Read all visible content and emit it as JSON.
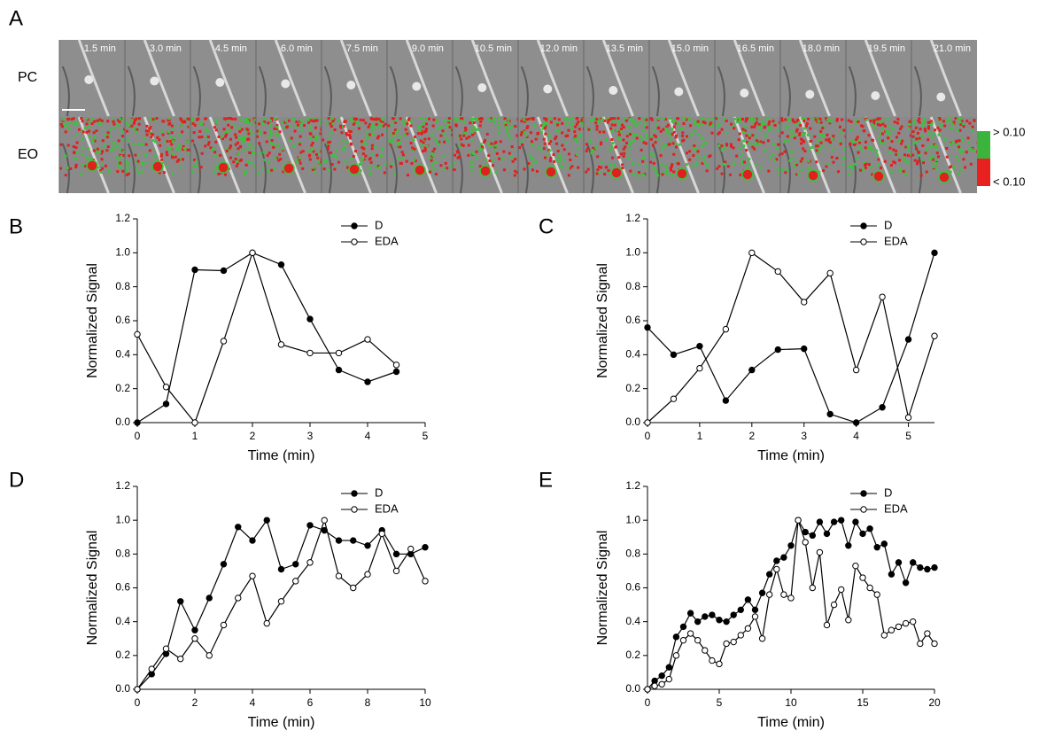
{
  "panel_a": {
    "letter": "A",
    "row_labels": [
      "PC",
      "EO"
    ],
    "times": [
      "1.5 min",
      "3.0 min",
      "4.5 min",
      "6.0 min",
      "7.5 min",
      "9.0 min",
      "10.5 min",
      "12.0 min",
      "13.5 min",
      "15.0 min",
      "16.5 min",
      "18.0 min",
      "19.5 min",
      "21.0 min"
    ],
    "colorbar_labels": [
      "> 0.10",
      "< 0.10"
    ]
  },
  "chart_data": [
    {
      "type": "line",
      "panel": "B",
      "x_label": "Time (min)",
      "y_label": "Normalized Signal",
      "x": [
        0,
        0.5,
        1,
        1.5,
        2,
        2.5,
        3,
        3.5,
        4,
        4.5
      ],
      "series": [
        {
          "name": "D",
          "color": "#000000",
          "marker": "filled",
          "values": [
            0,
            0.11,
            0.9,
            0.895,
            1.0,
            0.93,
            0.61,
            0.31,
            0.24,
            0.3
          ]
        },
        {
          "name": "EDA",
          "color": "#000000",
          "marker": "open",
          "values": [
            0.52,
            0.21,
            0,
            0.48,
            1.0,
            0.46,
            0.41,
            0.41,
            0.49,
            0.34
          ]
        }
      ],
      "xlim": [
        0,
        5
      ],
      "xticks": [
        0,
        1,
        2,
        3,
        4,
        5
      ],
      "ylim": [
        0,
        1.2
      ],
      "yticks": [
        {
          "value": 0,
          "label": "0.0"
        },
        0.2,
        0.4,
        0.6,
        0.8,
        {
          "value": 1,
          "label": "1.0"
        },
        1.2
      ],
      "legend": "top-right"
    },
    {
      "type": "line",
      "panel": "C",
      "x_label": "Time (min)",
      "y_label": "Normalized Signal",
      "x": [
        0,
        0.5,
        1,
        1.5,
        2,
        2.5,
        3,
        3.5,
        4,
        4.5,
        5,
        5.5
      ],
      "series": [
        {
          "name": "D",
          "color": "#000000",
          "marker": "filled",
          "values": [
            0.56,
            0.4,
            0.45,
            0.13,
            0.31,
            0.43,
            0.435,
            0.05,
            0,
            0.09,
            0.49,
            1.0
          ]
        },
        {
          "name": "EDA",
          "color": "#000000",
          "marker": "open",
          "values": [
            0,
            0.14,
            0.32,
            0.55,
            1.0,
            0.89,
            0.71,
            0.88,
            0.31,
            0.74,
            0.03,
            0.51
          ]
        }
      ],
      "xlim": [
        0,
        5.5
      ],
      "xticks": [
        0,
        1,
        2,
        3,
        4,
        5
      ],
      "ylim": [
        0,
        1.2
      ],
      "yticks": [
        {
          "value": 0,
          "label": "0.0"
        },
        0.2,
        0.4,
        0.6,
        0.8,
        {
          "value": 1,
          "label": "1.0"
        },
        1.2
      ],
      "legend": "top-right"
    },
    {
      "type": "line",
      "panel": "D",
      "x_label": "Time (min)",
      "y_label": "Normalized Signal",
      "x": [
        0,
        0.5,
        1,
        1.5,
        2,
        2.5,
        3,
        3.5,
        4,
        4.5,
        5,
        5.5,
        6,
        6.5,
        7,
        7.5,
        8,
        8.5,
        9,
        9.5,
        10
      ],
      "series": [
        {
          "name": "D",
          "color": "#000000",
          "marker": "filled",
          "values": [
            0,
            0.09,
            0.21,
            0.52,
            0.35,
            0.54,
            0.74,
            0.96,
            0.88,
            1.0,
            0.71,
            0.74,
            0.97,
            0.94,
            0.88,
            0.88,
            0.85,
            0.94,
            0.8,
            0.8,
            0.84
          ]
        },
        {
          "name": "EDA",
          "color": "#000000",
          "marker": "open",
          "values": [
            0,
            0.12,
            0.24,
            0.18,
            0.3,
            0.2,
            0.38,
            0.54,
            0.67,
            0.39,
            0.52,
            0.64,
            0.75,
            1.0,
            0.67,
            0.6,
            0.68,
            0.92,
            0.7,
            0.83,
            0.64
          ]
        }
      ],
      "xlim": [
        0,
        10
      ],
      "xticks": [
        0,
        2,
        4,
        6,
        8,
        10
      ],
      "ylim": [
        0,
        1.2
      ],
      "yticks": [
        {
          "value": 0,
          "label": "0.0"
        },
        0.2,
        0.4,
        0.6,
        0.8,
        {
          "value": 1,
          "label": "1.0"
        },
        1.2
      ],
      "legend": "top-right"
    },
    {
      "type": "line",
      "panel": "E",
      "x_label": "Time (min)",
      "y_label": "Normalized Signal",
      "x": [
        0,
        0.5,
        1,
        1.5,
        2,
        2.5,
        3,
        3.5,
        4,
        4.5,
        5,
        5.5,
        6,
        6.5,
        7,
        7.5,
        8,
        8.5,
        9,
        9.5,
        10,
        10.5,
        11,
        11.5,
        12,
        12.5,
        13,
        13.5,
        14,
        14.5,
        15,
        15.5,
        16,
        16.5,
        17,
        17.5,
        18,
        18.5,
        19,
        19.5,
        20
      ],
      "series": [
        {
          "name": "D",
          "color": "#000000",
          "marker": "filled",
          "values": [
            0,
            0.05,
            0.08,
            0.13,
            0.31,
            0.37,
            0.45,
            0.4,
            0.43,
            0.44,
            0.41,
            0.4,
            0.44,
            0.47,
            0.53,
            0.47,
            0.57,
            0.68,
            0.76,
            0.78,
            0.85,
            1.0,
            0.93,
            0.91,
            0.99,
            0.92,
            0.99,
            1.0,
            0.85,
            0.99,
            0.92,
            0.95,
            0.84,
            0.86,
            0.68,
            0.75,
            0.63,
            0.75,
            0.72,
            0.71,
            0.72
          ]
        },
        {
          "name": "EDA",
          "color": "#000000",
          "marker": "open",
          "values": [
            0,
            0.02,
            0.03,
            0.06,
            0.2,
            0.29,
            0.33,
            0.29,
            0.23,
            0.17,
            0.15,
            0.27,
            0.28,
            0.32,
            0.36,
            0.43,
            0.3,
            0.56,
            0.71,
            0.56,
            0.54,
            1.0,
            0.87,
            0.6,
            0.81,
            0.38,
            0.5,
            0.59,
            0.41,
            0.73,
            0.66,
            0.6,
            0.56,
            0.32,
            0.35,
            0.37,
            0.39,
            0.4,
            0.27,
            0.33,
            0.27
          ]
        }
      ],
      "xlim": [
        0,
        20
      ],
      "xticks": [
        0,
        5,
        10,
        15,
        20
      ],
      "ylim": [
        0,
        1.2
      ],
      "yticks": [
        {
          "value": 0,
          "label": "0.0"
        },
        0.2,
        0.4,
        0.6,
        0.8,
        {
          "value": 1,
          "label": "1.0"
        },
        1.2
      ],
      "legend": "top-right"
    }
  ]
}
